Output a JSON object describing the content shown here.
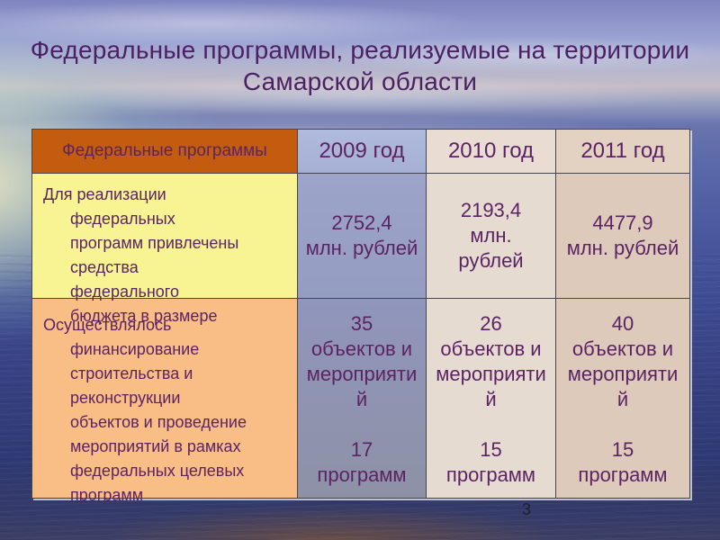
{
  "slide": {
    "title": "Федеральные программы, реализуемые на территории Самарской области",
    "page_number": "3"
  },
  "table": {
    "header": {
      "label": "Федеральные программы",
      "years": [
        "2009 год",
        "2010 год",
        "2011 год"
      ]
    },
    "rows": [
      {
        "label": "Для реализации\nфедеральных\nпрограмм привлечены\nсредства\nфедерального\nбюджета в размере",
        "values": [
          "2752,4\nмлн. рублей",
          "2193,4\nмлн.\nрублей",
          "4477,9\nмлн. рублей"
        ]
      },
      {
        "label": "Осуществлялось\nфинансирование\nстроительства и\nреконструкции\nобъектов и проведение\nмероприятий в рамках\nфедеральных целевых\nпрограмм",
        "values": [
          "35\nобъектов и\nмероприяти\nй\n\n17\nпрограмм",
          "26\nобъектов и\nмероприяти\nй\n\n15\nпрограмм",
          "40\nобъектов и\nмероприяти\nй\n\n15\nпрограмм"
        ]
      }
    ]
  },
  "colors": {
    "title_text": "#4b2166",
    "table_text": "#5c2364",
    "header_orange": "#c45c10",
    "row1_yellow": "#f8f494",
    "row2_peach": "#f9bd86",
    "col_2009_blue": "#98a0c6",
    "col_2010_beige": "#e6dbd0",
    "col_2011_beige": "#ddcaba",
    "border": "#46464e"
  }
}
